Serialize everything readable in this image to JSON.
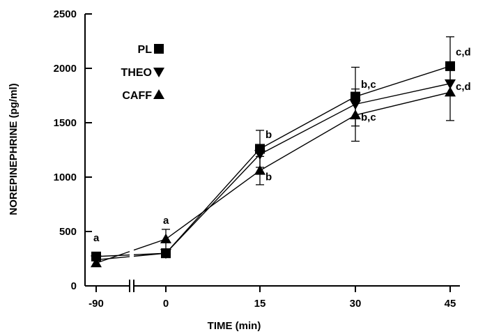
{
  "chart_data": {
    "type": "line",
    "x": [
      -90,
      0,
      15,
      30,
      45
    ],
    "xticklabels": [
      "-90",
      "0",
      "15",
      "30",
      "45"
    ],
    "xlabel": "TIME (min)",
    "ylabel": "NOREPINEPHRINE (pg/ml)",
    "ylim": [
      0,
      2500
    ],
    "yticks": [
      0,
      500,
      1000,
      1500,
      2000,
      2500
    ],
    "axis_break_x": true,
    "grid": false,
    "legend_placement": "top-left",
    "series": [
      {
        "name": "PL",
        "marker": "square",
        "values": [
          270,
          300,
          1260,
          1740,
          2020
        ],
        "error": [
          null,
          null,
          170,
          270,
          270
        ]
      },
      {
        "name": "THEO",
        "marker": "triangle-down",
        "values": [
          240,
          300,
          1210,
          1670,
          1860
        ],
        "error": [
          null,
          null,
          null,
          null,
          null
        ]
      },
      {
        "name": "CAFF",
        "marker": "triangle-up",
        "values": [
          210,
          430,
          1060,
          1570,
          1780
        ],
        "error": [
          null,
          90,
          130,
          240,
          260
        ]
      }
    ],
    "annotations": [
      {
        "text": "a",
        "x": -90,
        "y": 410
      },
      {
        "text": "a",
        "x": 0,
        "y": 570
      },
      {
        "text": "b",
        "x": 15,
        "y": 1360
      },
      {
        "text": "b",
        "x": 15,
        "y": 970
      },
      {
        "text": "b,c",
        "x": 30,
        "y": 1820
      },
      {
        "text": "b,c",
        "x": 30,
        "y": 1520
      },
      {
        "text": "c,d",
        "x": 45,
        "y": 2120
      },
      {
        "text": "c,d",
        "x": 45,
        "y": 1800
      }
    ]
  }
}
